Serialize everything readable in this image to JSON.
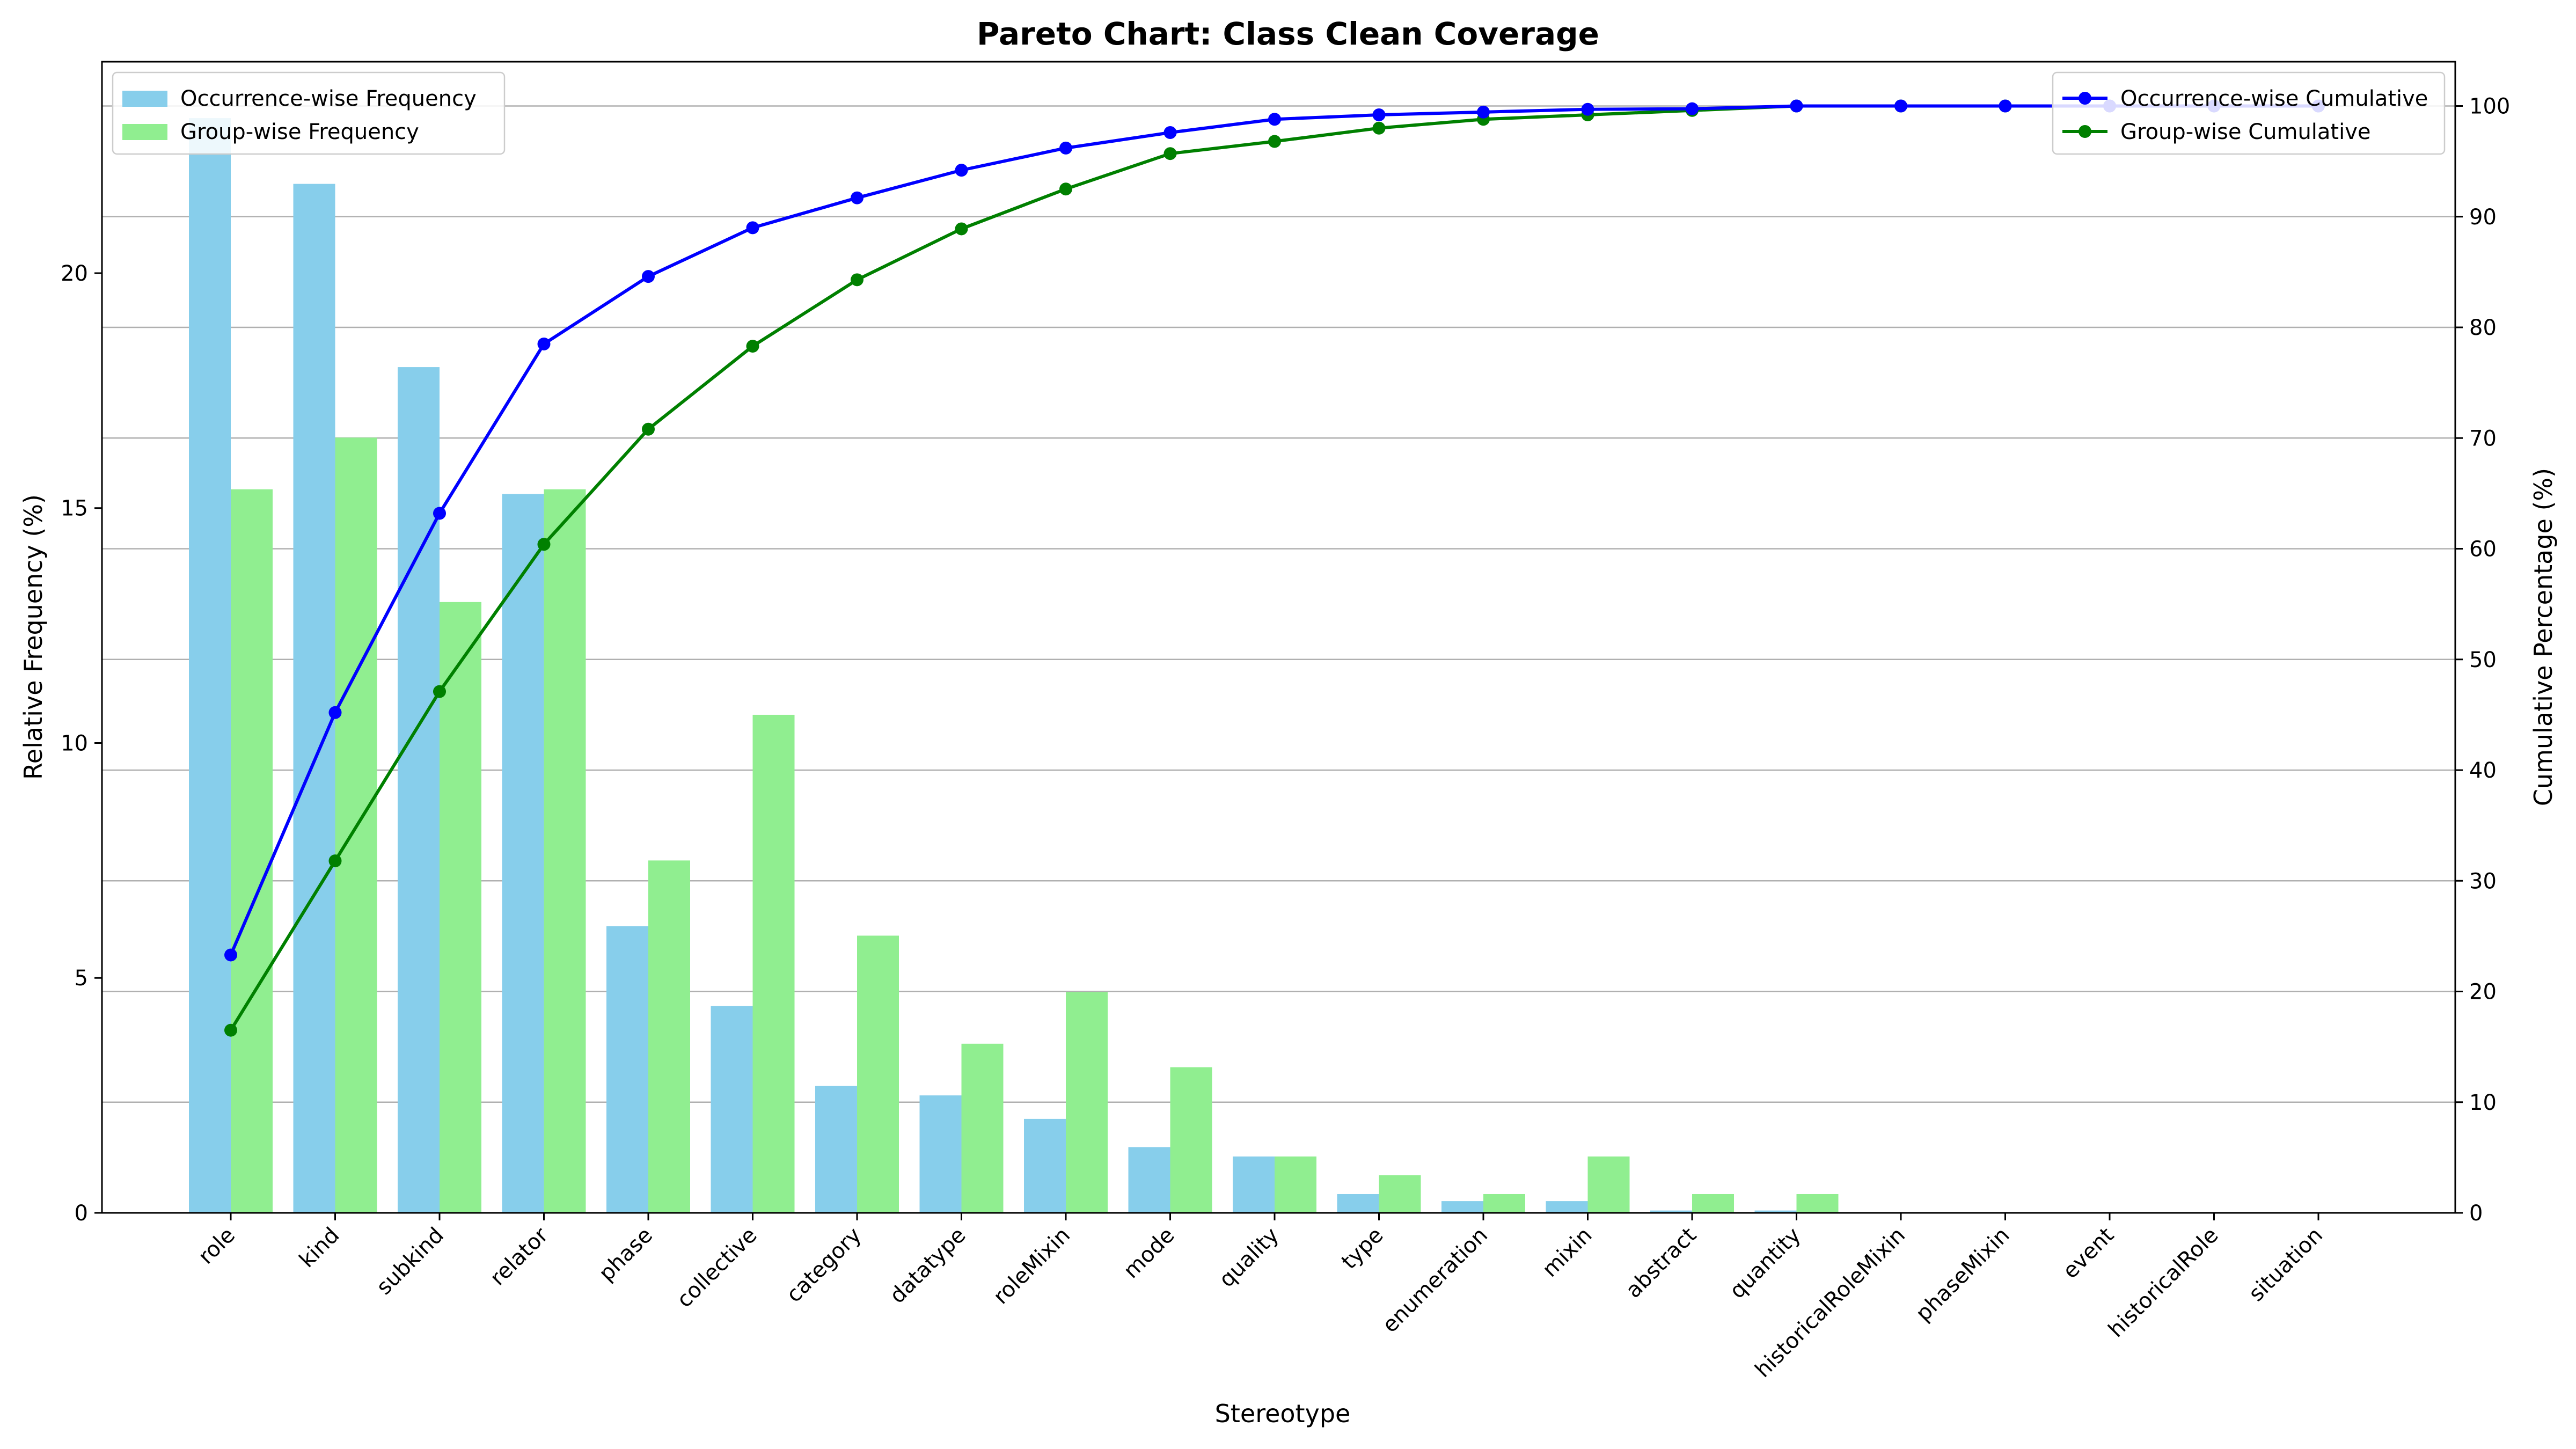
{
  "chart_data": {
    "type": "bar",
    "title": "Pareto Chart: Class Clean Coverage",
    "xlabel": "Stereotype",
    "ylabel": "Relative Frequency (%)",
    "y2label": "Cumulative Percentage (%)",
    "ylim": [
      0,
      24.5
    ],
    "y2lim": [
      0,
      104
    ],
    "yticks": [
      0,
      5,
      10,
      15,
      20
    ],
    "y2ticks": [
      0,
      10,
      20,
      30,
      40,
      50,
      60,
      70,
      80,
      90,
      100
    ],
    "grid": "horizontal on secondary axis",
    "categories": [
      "role",
      "kind",
      "subkind",
      "relator",
      "phase",
      "collective",
      "category",
      "datatype",
      "roleMixin",
      "mode",
      "quality",
      "type",
      "enumeration",
      "mixin",
      "abstract",
      "quantity",
      "historicalRoleMixin",
      "phaseMixin",
      "event",
      "historicalRole",
      "situation"
    ],
    "bar_series": [
      {
        "name": "Occurrence-wise Frequency",
        "color": "#87CEEB",
        "values": [
          23.3,
          21.9,
          18.0,
          15.3,
          6.1,
          4.4,
          2.7,
          2.5,
          2.0,
          1.4,
          1.2,
          0.4,
          0.25,
          0.25,
          0.05,
          0.05,
          0,
          0,
          0,
          0,
          0
        ]
      },
      {
        "name": "Group-wise Frequency",
        "color": "#90EE90",
        "values": [
          15.4,
          16.5,
          13.0,
          15.4,
          7.5,
          10.6,
          5.9,
          3.6,
          4.7,
          3.1,
          1.2,
          0.8,
          0.4,
          1.2,
          0.4,
          0.4,
          0,
          0,
          0,
          0,
          0
        ]
      }
    ],
    "line_series": [
      {
        "name": "Occurrence-wise Cumulative",
        "color": "#0000FF",
        "values": [
          23.3,
          45.2,
          63.2,
          78.5,
          84.6,
          89.0,
          91.7,
          94.2,
          96.2,
          97.6,
          98.8,
          99.2,
          99.45,
          99.7,
          99.75,
          100,
          100,
          100,
          100,
          100,
          100
        ]
      },
      {
        "name": "Group-wise Cumulative",
        "color": "#008000",
        "values": [
          16.5,
          31.8,
          47.1,
          60.4,
          70.8,
          78.3,
          84.3,
          88.9,
          92.5,
          95.7,
          96.8,
          98.0,
          98.8,
          99.2,
          99.6,
          100,
          100,
          100,
          100,
          100,
          100
        ]
      }
    ],
    "legend_left": "top-left",
    "legend_right": "top-right"
  }
}
